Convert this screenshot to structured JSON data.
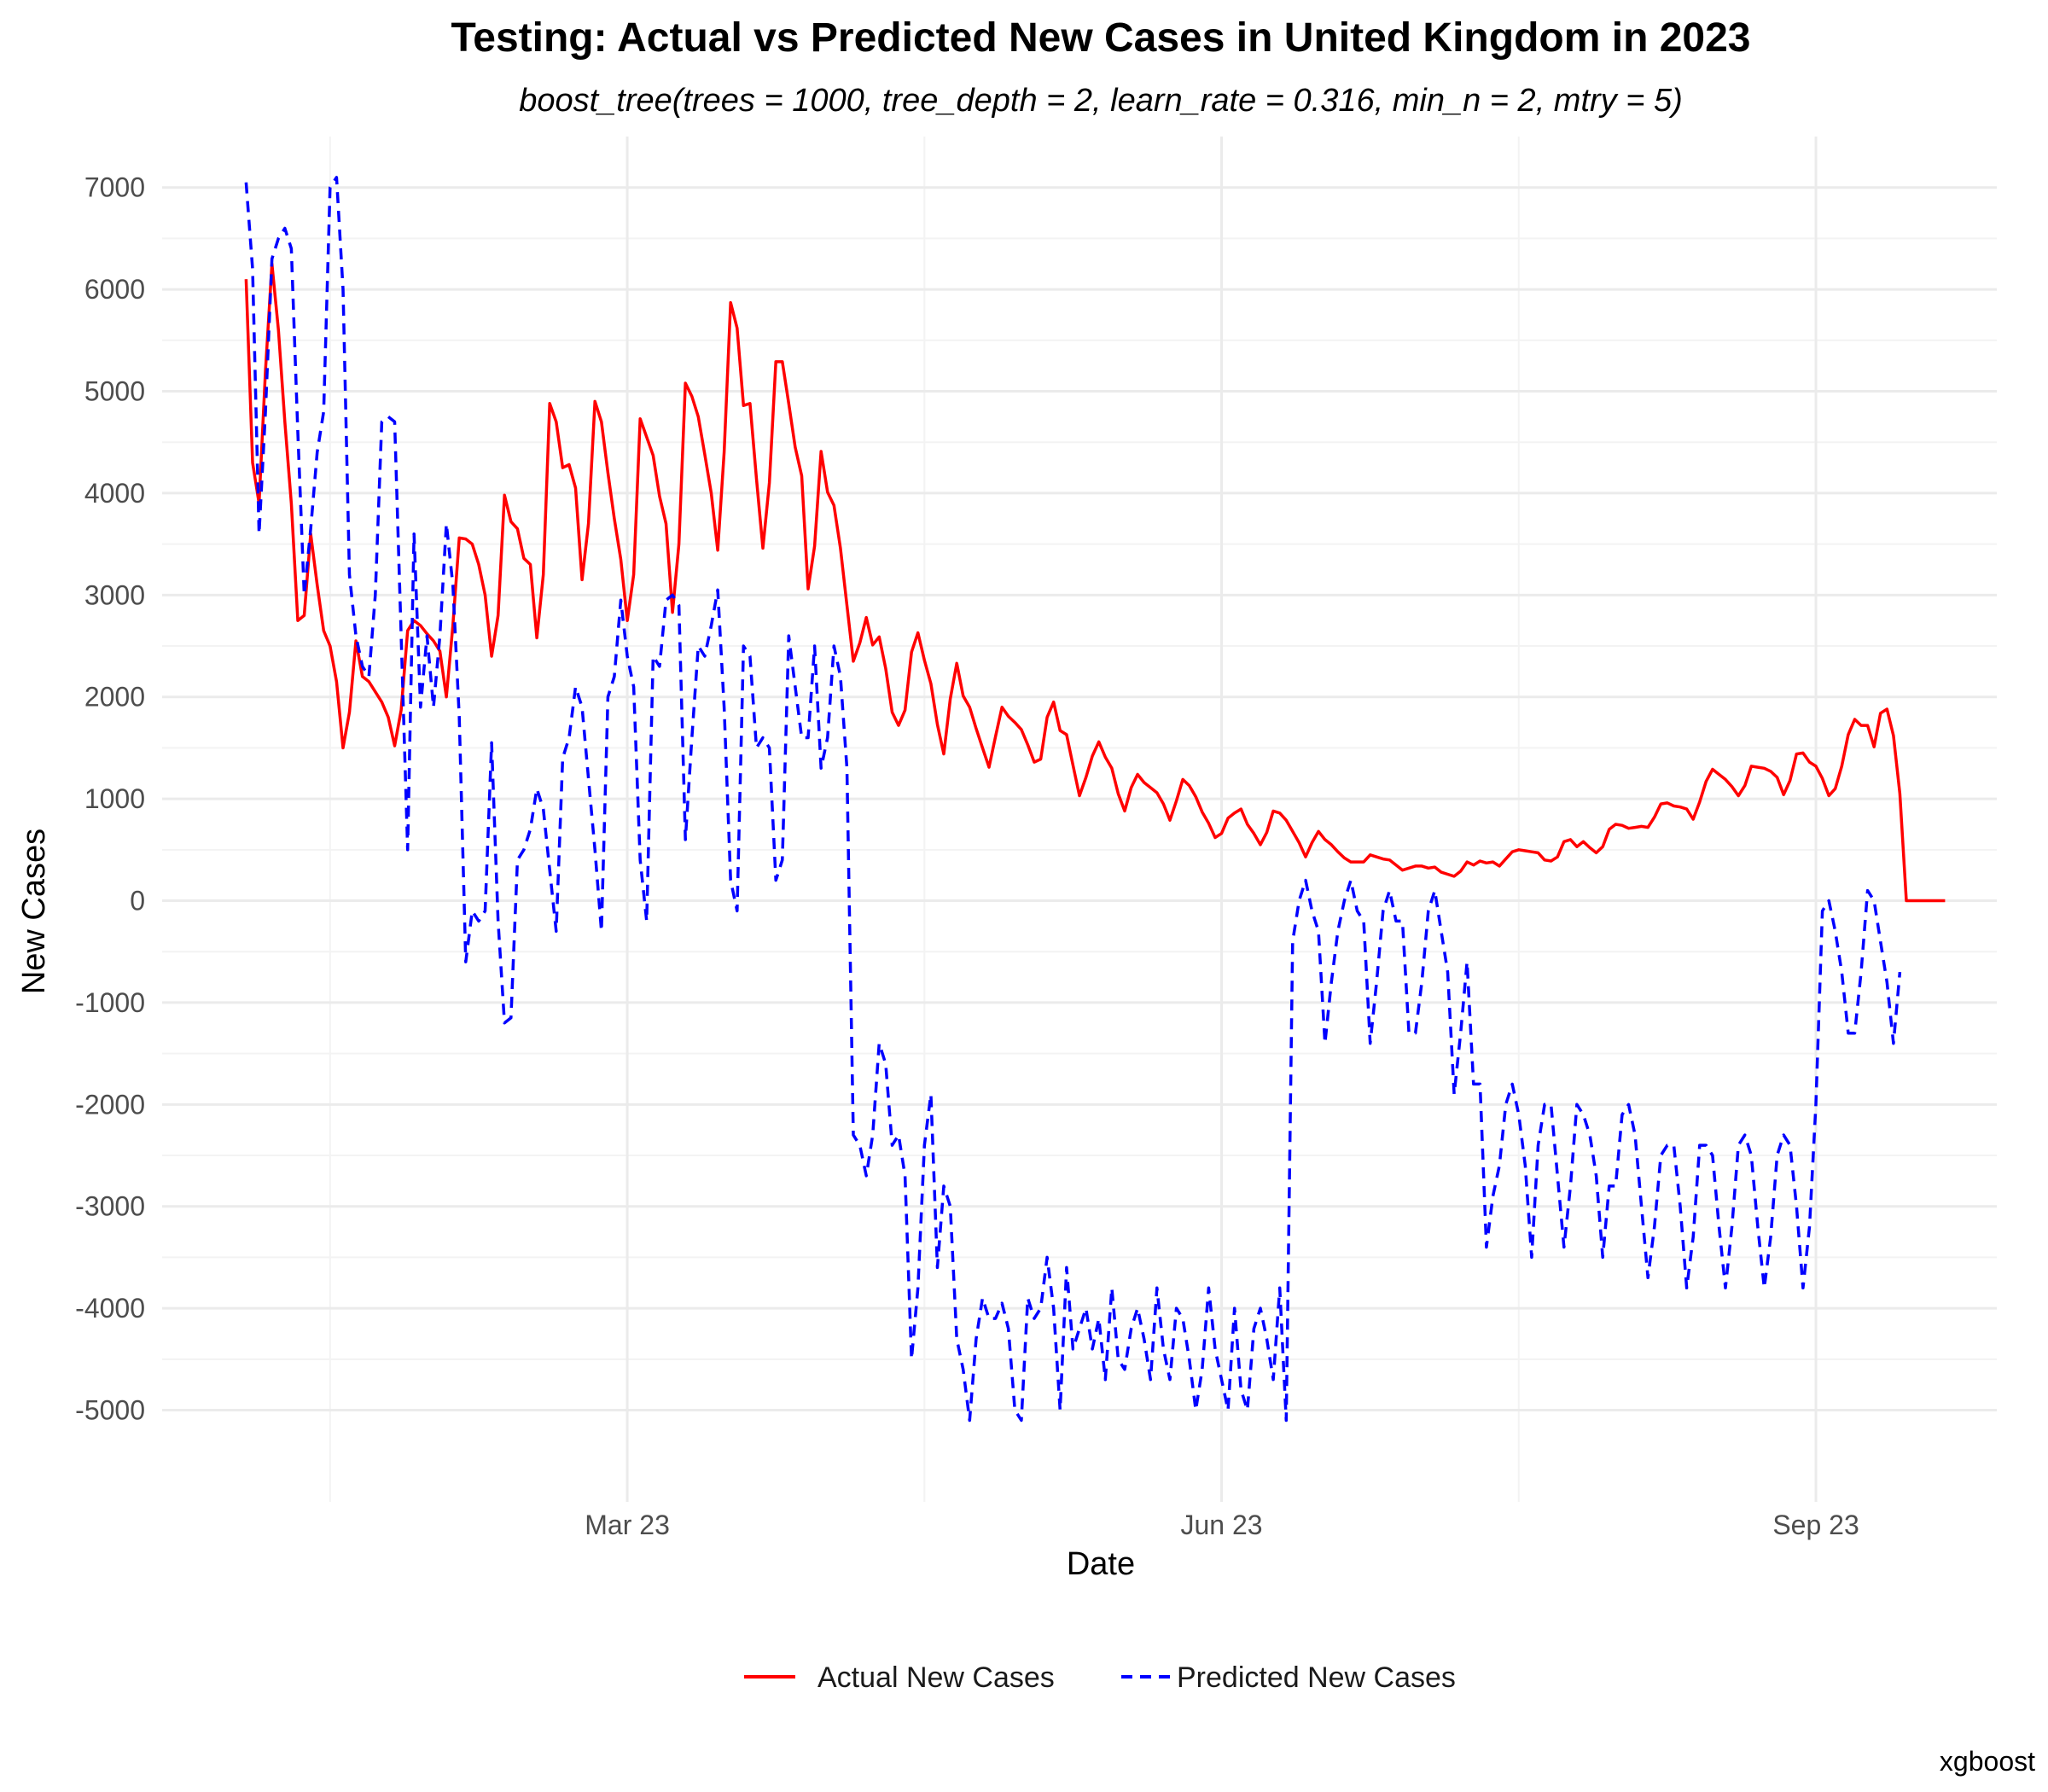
{
  "chart_data": {
    "type": "line",
    "title": "Testing: Actual vs Predicted New Cases in United Kingdom in 2023",
    "subtitle": "boost_tree(trees = 1000, tree_depth = 2, learn_rate = 0.316, min_n = 2, mtry = 5)",
    "xlabel": "Date",
    "ylabel": "New Cases",
    "caption": "xgboost",
    "x_ticks": [
      {
        "date": "2023-03-01",
        "label": "Mar 23"
      },
      {
        "date": "2023-06-01",
        "label": "Jun 23"
      },
      {
        "date": "2023-09-01",
        "label": "Sep 23"
      }
    ],
    "x_range": [
      "2022-12-19",
      "2023-09-29"
    ],
    "y_ticks": [
      7000,
      6000,
      5000,
      4000,
      3000,
      2000,
      1000,
      0,
      -1000,
      -2000,
      -3000,
      -4000,
      -5000
    ],
    "ylim": [
      -5900,
      7500
    ],
    "grid": true,
    "legend_position": "bottom",
    "series": [
      {
        "name": "Actual New Cases",
        "color": "#ff0000",
        "line_style": "solid",
        "start_date": "2023-01-01",
        "values": [
          6100,
          4300,
          3900,
          5200,
          6250,
          5600,
          4700,
          3900,
          2750,
          2800,
          3600,
          3100,
          2650,
          2500,
          2150,
          1500,
          1850,
          2550,
          2200,
          2150,
          2050,
          1950,
          1800,
          1520,
          1870,
          2650,
          2750,
          2700,
          2620,
          2550,
          2450,
          2000,
          2700,
          3560,
          3550,
          3500,
          3300,
          3000,
          2400,
          2800,
          3980,
          3720,
          3650,
          3360,
          3300,
          2580,
          3200,
          4880,
          4700,
          4250,
          4280,
          4050,
          3150,
          3700,
          4900,
          4700,
          4200,
          3750,
          3350,
          2750,
          3200,
          4730,
          4550,
          4370,
          3970,
          3700,
          2830,
          3500,
          5080,
          4950,
          4750,
          4380,
          4000,
          3440,
          4400,
          5870,
          5620,
          4860,
          4880,
          4140,
          3460,
          4100,
          5290,
          5290,
          4880,
          4450,
          4170,
          3060,
          3480,
          4410,
          4010,
          3880,
          3460,
          2900,
          2350,
          2530,
          2780,
          2510,
          2590,
          2280,
          1850,
          1720,
          1870,
          2440,
          2630,
          2360,
          2130,
          1730,
          1440,
          1980,
          2330,
          2010,
          1900,
          1690,
          1500,
          1310,
          1610,
          1900,
          1810,
          1750,
          1680,
          1530,
          1360,
          1390,
          1800,
          1950,
          1670,
          1630,
          1330,
          1030,
          1210,
          1420,
          1560,
          1410,
          1300,
          1050,
          880,
          1110,
          1240,
          1160,
          1110,
          1060,
          950,
          790,
          980,
          1190,
          1130,
          1020,
          870,
          760,
          620,
          660,
          810,
          860,
          900,
          750,
          660,
          550,
          670,
          880,
          860,
          790,
          680,
          570,
          430,
          570,
          680,
          600,
          550,
          480,
          420,
          380,
          380,
          380,
          450,
          430,
          410,
          400,
          350,
          300,
          320,
          340,
          340,
          320,
          330,
          280,
          260,
          240,
          290,
          380,
          350,
          390,
          370,
          380,
          340,
          410,
          480,
          500,
          490,
          480,
          470,
          400,
          390,
          430,
          580,
          600,
          530,
          580,
          520,
          470,
          530,
          700,
          750,
          740,
          710,
          720,
          730,
          720,
          820,
          950,
          960,
          930,
          920,
          900,
          800,
          970,
          1170,
          1290,
          1240,
          1190,
          1120,
          1030,
          1130,
          1320,
          1310,
          1300,
          1270,
          1210,
          1040,
          1180,
          1440,
          1450,
          1360,
          1320,
          1200,
          1030,
          1100,
          1320,
          1630,
          1780,
          1720,
          1720,
          1510,
          1840,
          1880,
          1620,
          1050,
          0,
          0,
          0,
          0,
          0,
          0,
          0
        ]
      },
      {
        "name": "Predicted New Cases",
        "color": "#0000ff",
        "line_style": "dashed",
        "start_date": "2023-01-01",
        "values": [
          7050,
          6200,
          3600,
          4800,
          6300,
          6500,
          6600,
          6400,
          4600,
          3000,
          3650,
          4400,
          4800,
          7000,
          7100,
          6000,
          3200,
          2600,
          2300,
          2200,
          3000,
          4700,
          4750,
          4700,
          2600,
          500,
          3600,
          1900,
          2600,
          1900,
          2600,
          3700,
          3100,
          1800,
          -600,
          -100,
          -200,
          -100,
          1550,
          -200,
          -1200,
          -1150,
          400,
          500,
          700,
          1100,
          900,
          300,
          -300,
          1400,
          1600,
          2100,
          1900,
          1200,
          500,
          -300,
          2000,
          2200,
          2950,
          2400,
          2100,
          400,
          -200,
          2400,
          2300,
          2950,
          3000,
          2900,
          600,
          1600,
          2500,
          2400,
          2700,
          3050,
          1900,
          200,
          -100,
          2500,
          2400,
          1500,
          1600,
          1500,
          200,
          400,
          2600,
          2100,
          1600,
          1600,
          2500,
          1300,
          1600,
          2500,
          2200,
          1300,
          -2300,
          -2400,
          -2700,
          -2300,
          -1400,
          -1600,
          -2400,
          -2300,
          -2700,
          -4500,
          -3800,
          -2400,
          -1900,
          -3600,
          -2800,
          -3000,
          -4300,
          -4600,
          -5100,
          -4300,
          -3900,
          -4100,
          -4100,
          -3950,
          -4200,
          -5000,
          -5100,
          -3900,
          -4100,
          -4000,
          -3500,
          -4000,
          -5000,
          -3600,
          -4400,
          -4200,
          -4000,
          -4400,
          -4100,
          -4700,
          -3800,
          -4500,
          -4600,
          -4200,
          -4000,
          -4300,
          -4700,
          -3800,
          -4400,
          -4700,
          -4000,
          -4100,
          -4500,
          -5000,
          -4600,
          -3800,
          -4400,
          -4700,
          -5000,
          -4000,
          -4800,
          -5000,
          -4200,
          -4000,
          -4300,
          -4700,
          -3800,
          -5100,
          -400,
          0,
          200,
          -100,
          -300,
          -1400,
          -800,
          -300,
          0,
          200,
          -100,
          -200,
          -1400,
          -800,
          -100,
          100,
          -200,
          -200,
          -1300,
          -1300,
          -800,
          -100,
          100,
          -300,
          -700,
          -1900,
          -1300,
          -600,
          -1800,
          -1800,
          -3400,
          -2900,
          -2600,
          -2000,
          -1800,
          -2100,
          -2600,
          -3500,
          -2400,
          -2000,
          -2000,
          -2700,
          -3400,
          -2800,
          -2000,
          -2100,
          -2300,
          -2700,
          -3500,
          -2800,
          -2800,
          -2100,
          -2000,
          -2300,
          -3000,
          -3700,
          -3200,
          -2500,
          -2400,
          -2400,
          -3000,
          -3800,
          -3300,
          -2400,
          -2400,
          -2500,
          -3200,
          -3800,
          -3200,
          -2400,
          -2300,
          -2500,
          -3200,
          -3800,
          -3300,
          -2500,
          -2300,
          -2400,
          -3000,
          -3800,
          -3200,
          -2000,
          -100,
          0,
          -300,
          -700,
          -1300,
          -1300,
          -700,
          100,
          0,
          -400,
          -800,
          -1400,
          -700
        ]
      }
    ]
  }
}
